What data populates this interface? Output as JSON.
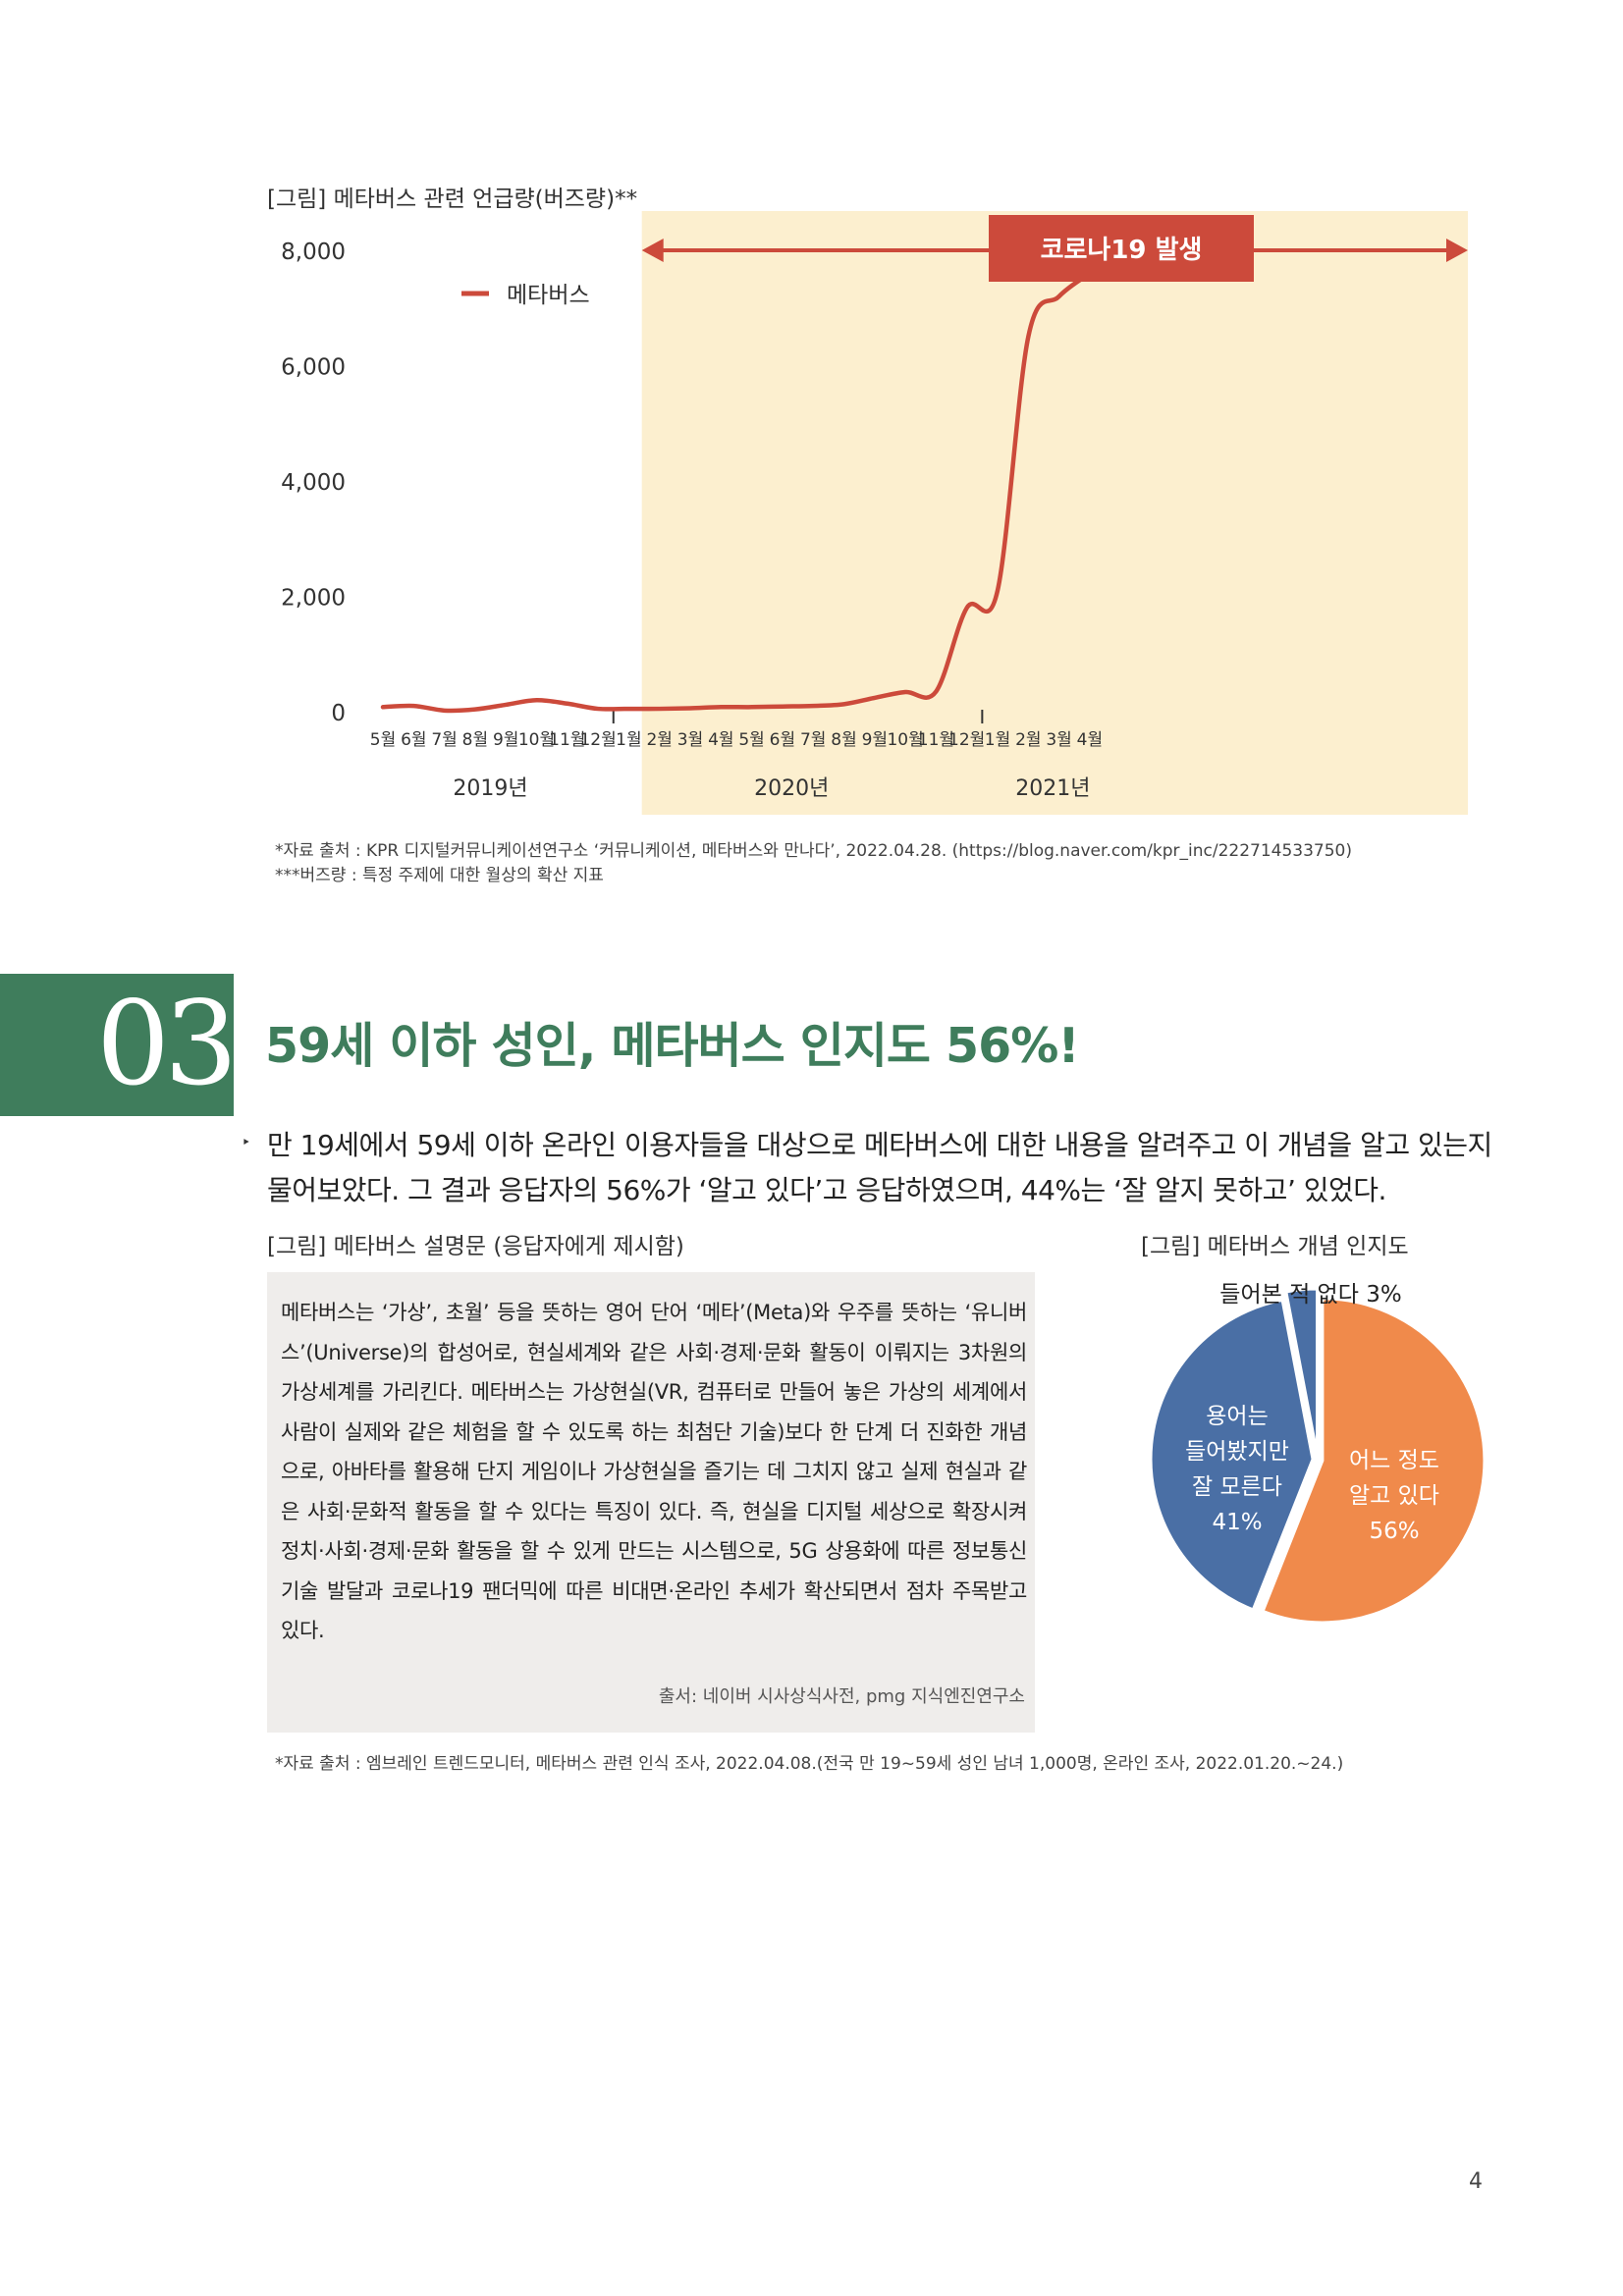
{
  "chart1": {
    "caption": "[그림] 메타버스 관련 언급량(버즈량)**",
    "covid_label": "코로나19 발생",
    "source_note": "*자료 출처 : KPR 디지털커뮤니케이션연구소 ‘커뮤니케이션, 메타버스와 만나다’, 2022.04.28. (https://blog.naver.com/kpr_inc/222714533750)",
    "buzz_note": "***버즈량 : 특정 주제에 대한 월상의 확산 지표"
  },
  "chart_data": {
    "type": "line",
    "title": "",
    "xlabel": "",
    "ylabel": "",
    "ylim": [
      0,
      8000
    ],
    "y_ticks": [
      "0",
      "2,000",
      "4,000",
      "6,000",
      "8,000"
    ],
    "x": [
      "5월",
      "6월",
      "7월",
      "8월",
      "9월",
      "10월",
      "11월",
      "12월",
      "1월",
      "2월",
      "3월",
      "4월",
      "5월",
      "6월",
      "7월",
      "8월",
      "9월",
      "10월",
      "11월",
      "12월",
      "1월",
      "2월",
      "3월",
      "4월"
    ],
    "year_labels": [
      "2019년",
      "2020년",
      "2021년"
    ],
    "series": [
      {
        "name": "메타버스",
        "color": "#cc4a3b",
        "values": [
          80,
          100,
          20,
          40,
          120,
          200,
          140,
          50,
          50,
          50,
          60,
          80,
          80,
          90,
          100,
          130,
          240,
          340,
          350,
          1800,
          2100,
          6500,
          7200,
          7600
        ]
      }
    ],
    "highlight": {
      "from": "2월",
      "to": "4월",
      "label": "코로나19 발생"
    },
    "legend": "top-left",
    "grid": false
  },
  "section": {
    "number": "03",
    "title": "59세 이하 성인, 메타버스 인지도 56%!"
  },
  "intro": {
    "bullet": "‣",
    "text": "만 19세에서 59세 이하 온라인 이용자들을 대상으로 메타버스에 대한 내용을 알려주고 이 개념을 알고 있는지 물어보았다. 그 결과 응답자의 56%가 ‘알고 있다’고 응답하였으며, 44%는 ‘잘 알지 못하고’ 있었다."
  },
  "description": {
    "caption": "[그림] 메타버스 설명문 (응답자에게 제시함)",
    "text": "메타버스는 ‘가상’, 초월’ 등을 뜻하는 영어 단어 ‘메타’(Meta)와 우주를 뜻하는 ‘유니버스’(Universe)의 합성어로, 현실세계와 같은 사회·경제·문화 활동이 이뤄지는 3차원의 가상세계를 가리킨다. 메타버스는 가상현실(VR, 컴퓨터로 만들어 놓은 가상의 세계에서 사람이 실제와 같은 체험을 할 수 있도록 하는 최첨단 기술)보다 한 단계 더 진화한 개념으로, 아바타를 활용해 단지 게임이나 가상현실을 즐기는 데 그치지 않고 실제 현실과 같은 사회·문화적 활동을 할 수 있다는 특징이 있다. 즉, 현실을 디지털 세상으로 확장시켜 정치·사회·경제·문화 활동을 할 수 있게 만드는 시스템으로, 5G 상용화에 따른 정보통신기술 발달과 코로나19 팬더믹에 따른 비대면·온라인 추세가 확산되면서 점차 주목받고 있다.",
    "source": "출서: 네이버 시사상식사전, pmg 지식엔진연구소"
  },
  "pie": {
    "caption": "[그림] 메타버스 개념 인지도",
    "slices": [
      {
        "label_lines": [
          "어느 정도",
          "알고 있다",
          "56%"
        ],
        "value": 56,
        "color": "#f08a4b"
      },
      {
        "label_lines": [
          "용어는",
          "들어봤지만",
          "잘 모른다",
          "41%"
        ],
        "value": 41,
        "color": "#4a6fa5"
      },
      {
        "label_lines": [
          "들어본 적 없다 3%"
        ],
        "value": 3,
        "color": "#4a6fa5"
      }
    ]
  },
  "survey_note": "*자료 출처 : 엠브레인 트렌드모니터, 메타버스 관련 인식 조사, 2022.04.08.(전국 만 19~59세 성인 남녀 1,000명, 온라인 조사, 2022.01.20.~24.)",
  "page_number": "4"
}
